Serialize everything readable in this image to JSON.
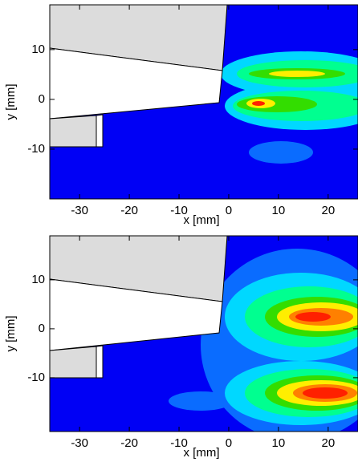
{
  "chart_data": [
    {
      "type": "contour",
      "xlabel": "x [mm]",
      "ylabel": "y [mm]",
      "xlim": [
        -36,
        26
      ],
      "xticks": [
        -30,
        -20,
        -10,
        0,
        10,
        20
      ],
      "ylim": [
        -20,
        19
      ],
      "yticks": [
        -10,
        0,
        10
      ]
    },
    {
      "type": "contour",
      "xlabel": "x [mm]",
      "ylabel": "y [mm]",
      "xlim": [
        -36,
        26
      ],
      "xticks": [
        -30,
        -20,
        -10,
        0,
        10,
        20
      ],
      "ylim": [
        -21,
        19
      ],
      "yticks": [
        -10,
        0,
        10
      ]
    }
  ]
}
